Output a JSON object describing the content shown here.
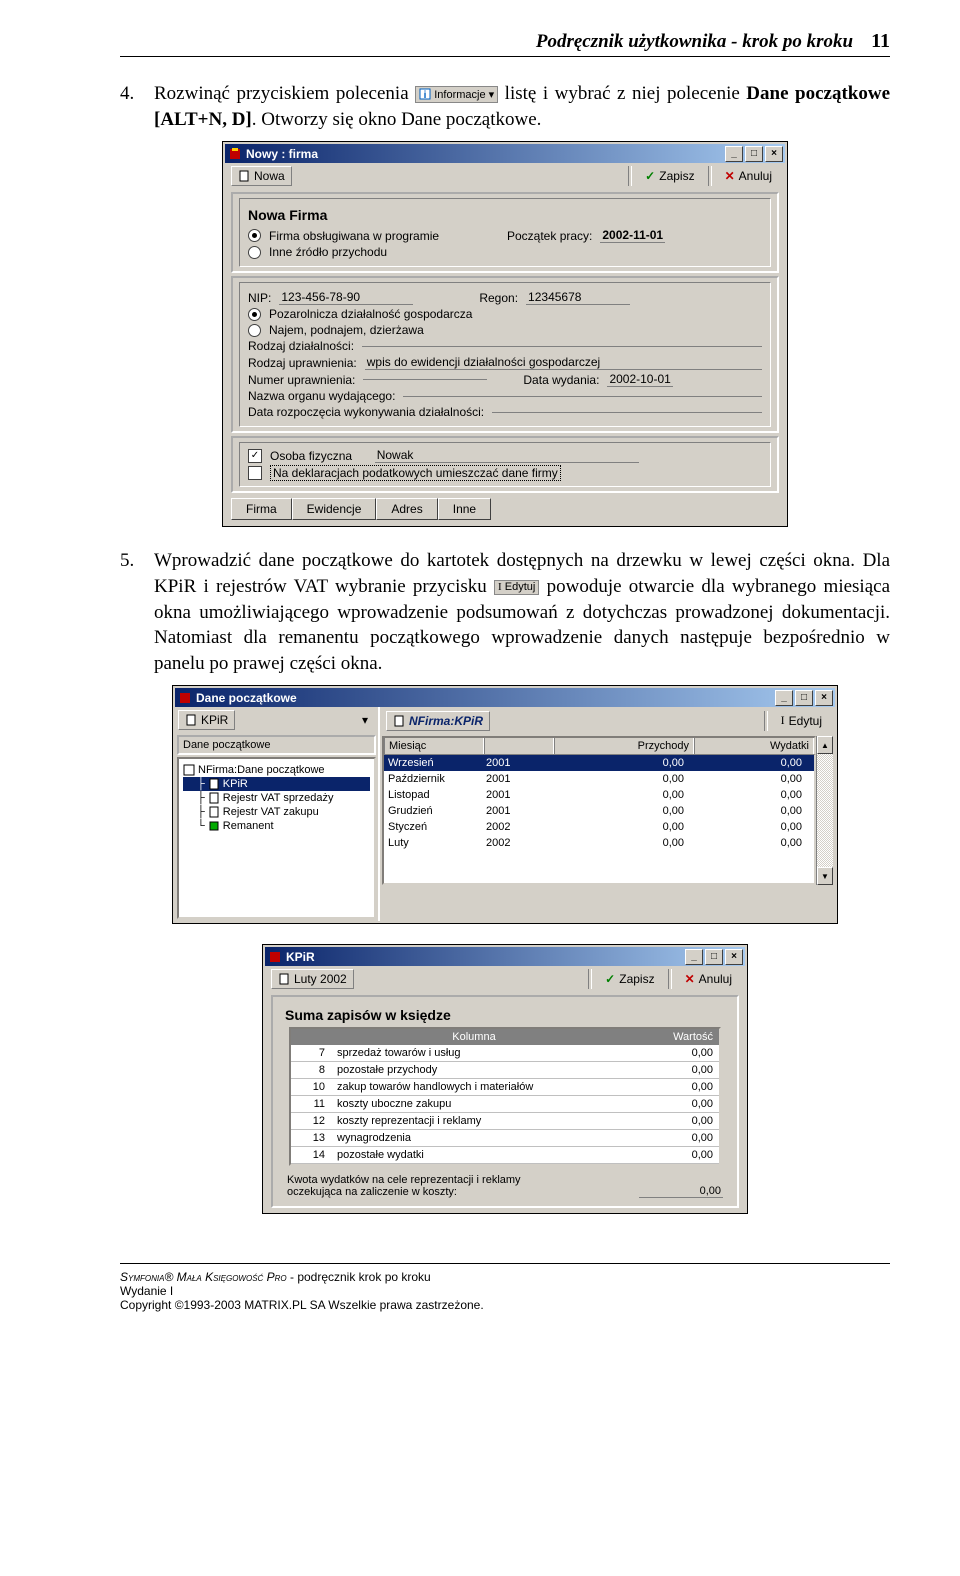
{
  "header": {
    "title": "Podręcznik użytkownika - krok po kroku",
    "page": "11"
  },
  "para4": {
    "num": "4.",
    "t1": "Rozwinąć przyciskiem polecenia ",
    "btn": "Informacje",
    "t2": " listę i wybrać z niej polecenie ",
    "t3": "Dane początkowe [ALT+N, D]",
    "t4": ". Otworzy się okno Dane początkowe."
  },
  "win1": {
    "title": "Nowy : firma",
    "toolbar": {
      "nowa": "Nowa",
      "zapisz": "Zapisz",
      "anuluj": "Anuluj"
    },
    "section_title": "Nowa Firma",
    "radio1": "Firma obsługiwana w programie",
    "radio2": "Inne źródło przychodu",
    "poczatek_label": "Początek pracy:",
    "poczatek_val": "2002-11-01",
    "nip_label": "NIP:",
    "nip_val": "123-456-78-90",
    "regon_label": "Regon:",
    "regon_val": "12345678",
    "r3": "Pozarolnicza działalność gospodarcza",
    "r4": "Najem, podnajem, dzierżawa",
    "l_rodzaj": "Rodzaj działalności:",
    "l_upraw": "Rodzaj uprawnienia:",
    "v_upraw": "wpis do ewidencji działalności gospodarczej",
    "l_numer": "Numer uprawnienia:",
    "l_data": "Data wydania:",
    "v_data": "2002-10-01",
    "l_organ": "Nazwa organu wydającego:",
    "l_rozp": "Data rozpoczęcia wykonywania działalności:",
    "chk1": "Osoba fizyczna",
    "chk1_val": "Nowak",
    "chk2": "Na deklaracjach podatkowych umieszczać dane firmy",
    "tabs": [
      "Firma",
      "Ewidencje",
      "Adres",
      "Inne"
    ]
  },
  "para5": {
    "num": "5.",
    "t1": "Wprowadzić dane początkowe do kartotek dostępnych na drzewku w lewej części okna. Dla KPiR i rejestrów VAT wybranie przycisku ",
    "btn": "Edytuj",
    "t2": " powoduje otwarcie dla wybranego miesiąca okna umożliwiającego wprowadzenie podsumowań z dotychczas prowadzonej dokumentacji. Natomiast dla remanentu początkowego wprowadzenie danych następuje bezpośrednio w panelu po prawej części okna."
  },
  "win2": {
    "title": "Dane początkowe",
    "left_btn": "KPiR",
    "left_header": "Dane początkowe",
    "tree_root": "NFirma:Dane początkowe",
    "tree_items": [
      "KPiR",
      "Rejestr VAT sprzedaży",
      "Rejestr VAT zakupu",
      "Remanent"
    ],
    "right_title": "NFirma:KPiR",
    "edytuj": "Edytuj",
    "cols": [
      "Miesiąc",
      "",
      "Przychody",
      "Wydatki"
    ],
    "rows": [
      {
        "m": "Wrzesień",
        "y": "2001",
        "p": "0,00",
        "w": "0,00",
        "sel": true
      },
      {
        "m": "Październik",
        "y": "2001",
        "p": "0,00",
        "w": "0,00"
      },
      {
        "m": "Listopad",
        "y": "2001",
        "p": "0,00",
        "w": "0,00"
      },
      {
        "m": "Grudzień",
        "y": "2001",
        "p": "0,00",
        "w": "0,00"
      },
      {
        "m": "Styczeń",
        "y": "2002",
        "p": "0,00",
        "w": "0,00"
      },
      {
        "m": "Luty",
        "y": "2002",
        "p": "0,00",
        "w": "0,00"
      }
    ]
  },
  "win3": {
    "title": "KPiR",
    "period": "Luty 2002",
    "zapisz": "Zapisz",
    "anuluj": "Anuluj",
    "section": "Suma zapisów w księdze",
    "head_col": "Kolumna",
    "head_val": "Wartość",
    "rows": [
      {
        "n": "7",
        "t": "sprzedaż towarów i usług",
        "v": "0,00"
      },
      {
        "n": "8",
        "t": "pozostałe przychody",
        "v": "0,00"
      },
      {
        "n": "10",
        "t": "zakup towarów handlowych i materiałów",
        "v": "0,00"
      },
      {
        "n": "11",
        "t": "koszty uboczne zakupu",
        "v": "0,00"
      },
      {
        "n": "12",
        "t": "koszty reprezentacji i reklamy",
        "v": "0,00"
      },
      {
        "n": "13",
        "t": "wynagrodzenia",
        "v": "0,00"
      },
      {
        "n": "14",
        "t": "pozostałe wydatki",
        "v": "0,00"
      }
    ],
    "bottom1": "Kwota wydatków na cele reprezentacji i reklamy",
    "bottom2": "oczekująca na zaliczenie w koszty:",
    "bottom_val": "0,00"
  },
  "footer": {
    "l1a": "Symfonia",
    "l1b": "®",
    "l1c": " Mała Księgowość Pro",
    "l1d": " - podręcznik krok po kroku",
    "l2": "Wydanie I",
    "l3": "Copyright ©1993-2003 MATRIX.PL SA Wszelkie prawa zastrzeżone."
  }
}
